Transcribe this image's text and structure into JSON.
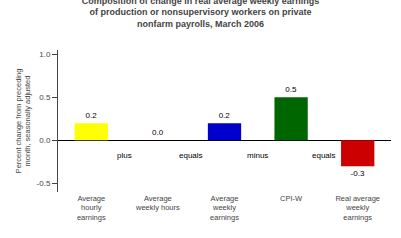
{
  "chart_data": {
    "type": "bar",
    "title": "Composition of change in real average weekly earnings\nof production or nonsupervisory workers on private\nnonfarm payrolls, March 2006",
    "ylabel": "Percent change from preceding\nmonth, seasonally adjusted",
    "categories": [
      "Average\nhourly\nearnings",
      "Average\nweekly hours",
      "Average\nweekly\nearnings",
      "CPI-W",
      "Real average\nweekly\nearnings"
    ],
    "values": [
      0.2,
      0.0,
      0.2,
      0.5,
      -0.3
    ],
    "value_labels": [
      "0.2",
      "0.0",
      "0.2",
      "0.5",
      "-0.3"
    ],
    "data_labels": true,
    "colors": [
      "#FFFF00",
      "#FFFFFF",
      "#0000CC",
      "#006600",
      "#CC0000"
    ],
    "annotations": [
      "plus",
      "equals",
      "minus",
      "equals"
    ],
    "ylim": [
      -0.6,
      1.05
    ],
    "yticks": [
      -0.5,
      {
        "value": 0.0,
        "label": "0.0"
      },
      0.5,
      {
        "value": 1.0,
        "label": "1.0"
      }
    ],
    "grid": false
  }
}
